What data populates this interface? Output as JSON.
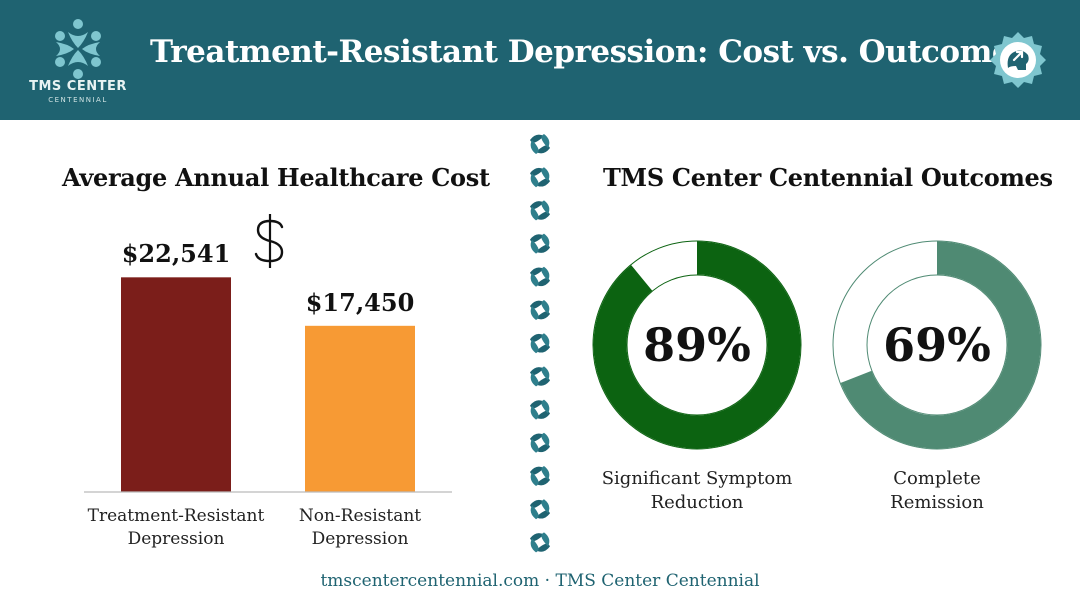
{
  "header": {
    "title": "Treatment-Resistant Depression: Cost vs. Outcomes",
    "logo_name": "TMS CENTER",
    "logo_sub": "CENTENNIAL",
    "bg_color": "#1f6371",
    "icon": "brain-upward-arrow-icon"
  },
  "footer": {
    "text": "tmscentercentennial.com · TMS Center Centennial"
  },
  "chart_data": [
    {
      "type": "bar",
      "title": "Average Annual Healthcare Cost",
      "categories": [
        "Treatment-Resistant Depression",
        "Non-Resistant Depression"
      ],
      "category_lines": [
        [
          "Treatment-Resistant",
          "Depression"
        ],
        [
          "Non-Resistant",
          "Depression"
        ]
      ],
      "values": [
        22541,
        17450
      ],
      "value_labels": [
        "$22,541",
        "$17,450"
      ],
      "colors": [
        "#7b1e1a",
        "#f79a34"
      ],
      "ylim": [
        0,
        27000
      ],
      "decoration": "dollar-sign-icon",
      "grid": false
    },
    {
      "type": "pie",
      "title": "TMS Center Centennial Outcomes",
      "categories": [
        "Significant Symptom Reduction",
        "Complete Remission"
      ],
      "category_lines": [
        [
          "Significant Symptom",
          "Reduction"
        ],
        [
          "Complete",
          "Remission"
        ]
      ],
      "values": [
        89,
        69
      ],
      "value_labels": [
        "89%",
        "69%"
      ],
      "colors": [
        "#0c6311",
        "#4f8a73"
      ]
    }
  ]
}
